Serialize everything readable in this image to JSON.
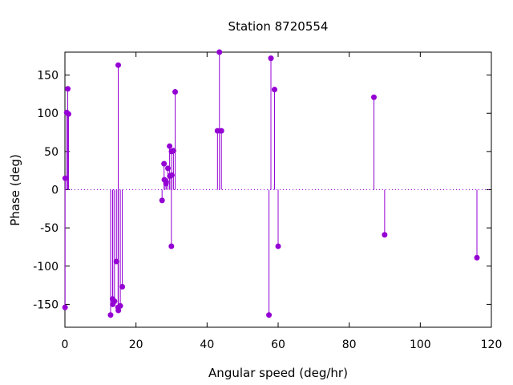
{
  "chart_data": {
    "type": "stem",
    "title": "Station 8720554",
    "xlabel": "Angular speed (deg/hr)",
    "ylabel": "Phase (deg)",
    "xlim": [
      0,
      120
    ],
    "ylim": [
      -180,
      180
    ],
    "xticks": [
      0,
      20,
      40,
      60,
      80,
      100,
      120
    ],
    "yticks": [
      -150,
      -100,
      -50,
      0,
      50,
      100,
      150
    ],
    "grid": false,
    "zero_line": true,
    "color": "#9400d3",
    "points": [
      {
        "x": 0.04,
        "y": -154
      },
      {
        "x": 0.08,
        "y": 15
      },
      {
        "x": 0.5,
        "y": 101
      },
      {
        "x": 0.8,
        "y": 132
      },
      {
        "x": 1.0,
        "y": 99
      },
      {
        "x": 12.85,
        "y": -164
      },
      {
        "x": 13.4,
        "y": -143
      },
      {
        "x": 13.47,
        "y": -150
      },
      {
        "x": 13.94,
        "y": -146
      },
      {
        "x": 14.5,
        "y": -94
      },
      {
        "x": 14.96,
        "y": -154
      },
      {
        "x": 15.0,
        "y": 163
      },
      {
        "x": 15.04,
        "y": -158
      },
      {
        "x": 15.59,
        "y": -152
      },
      {
        "x": 16.14,
        "y": -127
      },
      {
        "x": 27.34,
        "y": -14
      },
      {
        "x": 27.9,
        "y": 34
      },
      {
        "x": 28.0,
        "y": 13
      },
      {
        "x": 28.44,
        "y": 8
      },
      {
        "x": 28.51,
        "y": 10
      },
      {
        "x": 28.99,
        "y": 28
      },
      {
        "x": 29.46,
        "y": 57
      },
      {
        "x": 29.53,
        "y": 18
      },
      {
        "x": 29.96,
        "y": -74
      },
      {
        "x": 30.0,
        "y": 50
      },
      {
        "x": 30.08,
        "y": 19
      },
      {
        "x": 30.54,
        "y": 51
      },
      {
        "x": 31.02,
        "y": 128
      },
      {
        "x": 42.93,
        "y": 77
      },
      {
        "x": 43.48,
        "y": 180
      },
      {
        "x": 44.03,
        "y": 77
      },
      {
        "x": 57.42,
        "y": -164
      },
      {
        "x": 57.97,
        "y": 172
      },
      {
        "x": 58.98,
        "y": 131
      },
      {
        "x": 60.0,
        "y": -74
      },
      {
        "x": 86.95,
        "y": 121
      },
      {
        "x": 89.97,
        "y": -59
      },
      {
        "x": 115.94,
        "y": -89
      }
    ]
  }
}
